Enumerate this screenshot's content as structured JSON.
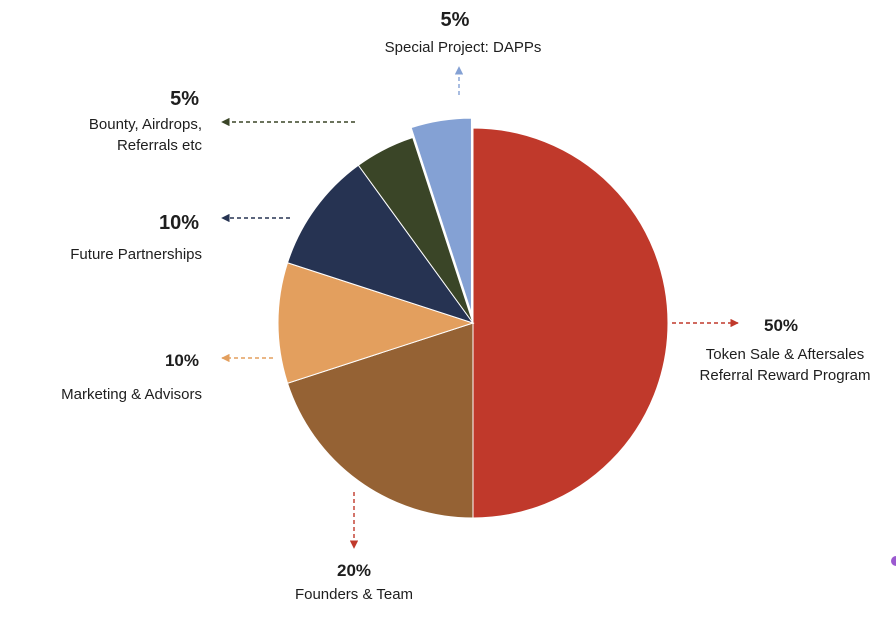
{
  "chart_data": {
    "type": "pie",
    "title": "",
    "slices": [
      {
        "label": "Token Sale & Aftersales Referral Reward Program",
        "label_lines": [
          "Token Sale & Aftersales",
          "Referral Reward Program"
        ],
        "percent_text": "50%",
        "value": 50,
        "color": "#c0392b",
        "arrow_color": "#c0392b"
      },
      {
        "label": "Founders & Team",
        "label_lines": [
          "Founders & Team"
        ],
        "percent_text": "20%",
        "value": 20,
        "color": "#956234",
        "arrow_color": "#c0392b"
      },
      {
        "label": "Marketing & Advisors",
        "label_lines": [
          "Marketing & Advisors"
        ],
        "percent_text": "10%",
        "value": 10,
        "color": "#e39f5e",
        "arrow_color": "#e39f5e"
      },
      {
        "label": "Future Partnerships",
        "label_lines": [
          "Future Partnerships"
        ],
        "percent_text": "10%",
        "value": 10,
        "color": "#263352",
        "arrow_color": "#263352"
      },
      {
        "label": "Bounty, Airdrops, Referrals etc",
        "label_lines": [
          "Bounty, Airdrops,",
          "Referrals etc"
        ],
        "percent_text": "5%",
        "value": 5,
        "color": "#3a4527",
        "arrow_color": "#3a4527"
      },
      {
        "label": "Special Project: DAPPs",
        "label_lines": [
          "Special Project: DAPPs"
        ],
        "percent_text": "5%",
        "value": 5,
        "color": "#84a1d4",
        "arrow_color": "#84a1d4"
      }
    ],
    "legend": "none"
  }
}
